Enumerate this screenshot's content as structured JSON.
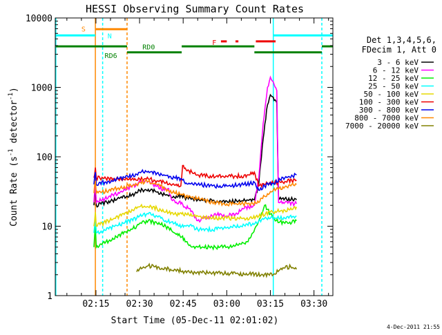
{
  "chart_data": {
    "type": "line",
    "title": "HESSI Observing Summary Count Rates",
    "xlabel": "Start Time (05-Dec-11 02:01:02)",
    "ylabel_base": "Count Rate (s",
    "ylabel_exp1": "-1",
    "ylabel_mid": " detector",
    "ylabel_exp2": "-1",
    "ylabel_end": ")",
    "y_scale": "log",
    "ylim": [
      1,
      10000
    ],
    "xlim_min": [
      121.0,
      216.5
    ],
    "x_ticks": [
      {
        "min": 135,
        "label": "02:15"
      },
      {
        "min": 150,
        "label": "02:30"
      },
      {
        "min": 165,
        "label": "02:45"
      },
      {
        "min": 180,
        "label": "03:00"
      },
      {
        "min": 195,
        "label": "03:15"
      },
      {
        "min": 210,
        "label": "03:30"
      }
    ],
    "y_ticks": [
      {
        "value": 1,
        "label": "1"
      },
      {
        "value": 10,
        "label": "10"
      },
      {
        "value": 100,
        "label": "100"
      },
      {
        "value": 1000,
        "label": "1000"
      },
      {
        "value": 10000,
        "label": "10000"
      }
    ],
    "legend": {
      "position": "right",
      "header1": "Det 1,3,4,5,6,",
      "header2": "FDecim 1, Att 0",
      "entries": [
        {
          "label": "3 - 6 keV",
          "color": "#000000"
        },
        {
          "label": "6 - 12 keV",
          "color": "#ff00ff"
        },
        {
          "label": "12 - 25 keV",
          "color": "#00ee00"
        },
        {
          "label": "25 - 50 keV",
          "color": "#00ffff"
        },
        {
          "label": "50 - 100 keV",
          "color": "#e6d800"
        },
        {
          "label": "100 - 300 keV",
          "color": "#ee0000"
        },
        {
          "label": "300 - 800 keV",
          "color": "#0000ee"
        },
        {
          "label": "800 - 7000 keV",
          "color": "#ff8800"
        },
        {
          "label": "7000 - 20000 keV",
          "color": "#808000"
        }
      ]
    },
    "series": [
      {
        "name": "3 - 6 keV",
        "color": "#000000",
        "points": [
          [
            134.3,
            20
          ],
          [
            134.8,
            35
          ],
          [
            135.1,
            20
          ],
          [
            149.0,
            30
          ],
          [
            150,
            33
          ],
          [
            153,
            34
          ],
          [
            156,
            31
          ],
          [
            159,
            28
          ],
          [
            162,
            26
          ],
          [
            164.5,
            28
          ],
          [
            165.5,
            26
          ],
          [
            170,
            24
          ],
          [
            175,
            23
          ],
          [
            180,
            23
          ],
          [
            185,
            23
          ],
          [
            189.5,
            24
          ],
          [
            191,
            40
          ],
          [
            192.5,
            180
          ],
          [
            194,
            560
          ],
          [
            195,
            780
          ],
          [
            196,
            720
          ],
          [
            197.2,
            600
          ],
          [
            197.8,
            26
          ],
          [
            200,
            25
          ],
          [
            204,
            24
          ]
        ]
      },
      {
        "name": "6 - 12 keV",
        "color": "#ff00ff",
        "points": [
          [
            134.3,
            22
          ],
          [
            134.8,
            40
          ],
          [
            135.1,
            22
          ],
          [
            149.0,
            40
          ],
          [
            150,
            45
          ],
          [
            153,
            44
          ],
          [
            156,
            38
          ],
          [
            158.5,
            33
          ],
          [
            160,
            35
          ],
          [
            161,
            24
          ],
          [
            163,
            21
          ],
          [
            164.5,
            22
          ],
          [
            165.5,
            19
          ],
          [
            167,
            18
          ],
          [
            170,
            12
          ],
          [
            172,
            13
          ],
          [
            175,
            14
          ],
          [
            178,
            15
          ],
          [
            180,
            14
          ],
          [
            183,
            15
          ],
          [
            186,
            18
          ],
          [
            189.5,
            20
          ],
          [
            191,
            50
          ],
          [
            192.5,
            300
          ],
          [
            194,
            1000
          ],
          [
            195,
            1400
          ],
          [
            196,
            1200
          ],
          [
            197.2,
            900
          ],
          [
            197.8,
            22
          ],
          [
            200,
            22
          ],
          [
            204,
            21
          ]
        ]
      },
      {
        "name": "12 - 25 keV",
        "color": "#00ee00",
        "points": [
          [
            134.3,
            5
          ],
          [
            134.8,
            10
          ],
          [
            135.1,
            5
          ],
          [
            149.0,
            10
          ],
          [
            150,
            11
          ],
          [
            153,
            12
          ],
          [
            156,
            11
          ],
          [
            159,
            10
          ],
          [
            162,
            8
          ],
          [
            164.5,
            7
          ],
          [
            166,
            6
          ],
          [
            168,
            5
          ],
          [
            170,
            5
          ],
          [
            175,
            5
          ],
          [
            180,
            5
          ],
          [
            185,
            5.5
          ],
          [
            187,
            6
          ],
          [
            189,
            8
          ],
          [
            191,
            12
          ],
          [
            193,
            20
          ],
          [
            195,
            15
          ],
          [
            197,
            12
          ],
          [
            200,
            11
          ],
          [
            204,
            12
          ]
        ]
      },
      {
        "name": "25 - 50 keV",
        "color": "#00ffff",
        "points": [
          [
            134.3,
            8
          ],
          [
            134.8,
            14
          ],
          [
            135.1,
            8
          ],
          [
            149.0,
            13
          ],
          [
            150,
            14
          ],
          [
            153,
            15
          ],
          [
            156,
            14
          ],
          [
            159,
            12
          ],
          [
            162,
            11
          ],
          [
            164.5,
            10
          ],
          [
            166,
            10
          ],
          [
            168,
            10
          ],
          [
            170,
            9
          ],
          [
            175,
            9
          ],
          [
            180,
            9.5
          ],
          [
            185,
            10
          ],
          [
            189,
            11
          ],
          [
            191,
            12
          ],
          [
            193,
            13
          ],
          [
            195,
            13
          ],
          [
            197,
            13
          ],
          [
            200,
            13
          ],
          [
            204,
            14
          ]
        ]
      },
      {
        "name": "50 - 100 keV",
        "color": "#e6d800",
        "points": [
          [
            134.3,
            10
          ],
          [
            134.8,
            16
          ],
          [
            135.1,
            10
          ],
          [
            149.0,
            18
          ],
          [
            150,
            19
          ],
          [
            153,
            19
          ],
          [
            156,
            18
          ],
          [
            159,
            16
          ],
          [
            162,
            15
          ],
          [
            164.5,
            15
          ],
          [
            166,
            15
          ],
          [
            170,
            14
          ],
          [
            175,
            13
          ],
          [
            180,
            13
          ],
          [
            185,
            13
          ],
          [
            189,
            13
          ],
          [
            191,
            14
          ],
          [
            195,
            16
          ],
          [
            200,
            17
          ],
          [
            204,
            19
          ]
        ]
      },
      {
        "name": "100 - 300 keV",
        "color": "#ee0000",
        "points": [
          [
            134.3,
            50
          ],
          [
            134.8,
            70
          ],
          [
            135.1,
            50
          ],
          [
            149.0,
            46
          ],
          [
            150,
            48
          ],
          [
            153,
            48
          ],
          [
            156,
            45
          ],
          [
            159,
            42
          ],
          [
            162,
            39
          ],
          [
            164.2,
            38
          ],
          [
            164.8,
            75
          ],
          [
            166,
            65
          ],
          [
            170,
            55
          ],
          [
            175,
            52
          ],
          [
            180,
            52
          ],
          [
            185,
            53
          ],
          [
            188,
            55
          ],
          [
            189.5,
            60
          ],
          [
            191,
            38
          ],
          [
            193,
            40
          ],
          [
            196,
            42
          ],
          [
            200,
            44
          ],
          [
            204,
            46
          ]
        ]
      },
      {
        "name": "300 - 800 keV",
        "color": "#0000ee",
        "points": [
          [
            134.3,
            40
          ],
          [
            134.8,
            60
          ],
          [
            135.1,
            40
          ],
          [
            149.0,
            56
          ],
          [
            150,
            60
          ],
          [
            153,
            62
          ],
          [
            156,
            58
          ],
          [
            159,
            54
          ],
          [
            162,
            50
          ],
          [
            164.5,
            48
          ],
          [
            166,
            42
          ],
          [
            170,
            40
          ],
          [
            175,
            38
          ],
          [
            180,
            38
          ],
          [
            185,
            40
          ],
          [
            188,
            41
          ],
          [
            189.5,
            43
          ],
          [
            191,
            33
          ],
          [
            193,
            38
          ],
          [
            196,
            42
          ],
          [
            200,
            50
          ],
          [
            204,
            55
          ]
        ]
      },
      {
        "name": "800 - 7000 keV",
        "color": "#ff8800",
        "points": [
          [
            134.3,
            30
          ],
          [
            134.8,
            45
          ],
          [
            135.1,
            30
          ],
          [
            149.0,
            40
          ],
          [
            150,
            43
          ],
          [
            153,
            44
          ],
          [
            156,
            40
          ],
          [
            159,
            34
          ],
          [
            162,
            30
          ],
          [
            164.5,
            29
          ],
          [
            166,
            27
          ],
          [
            170,
            25
          ],
          [
            175,
            22
          ],
          [
            180,
            21
          ],
          [
            185,
            21
          ],
          [
            189,
            21
          ],
          [
            191,
            22
          ],
          [
            193,
            27
          ],
          [
            196,
            33
          ],
          [
            200,
            37
          ],
          [
            204,
            40
          ]
        ]
      },
      {
        "name": "7000 - 20000 keV",
        "color": "#808000",
        "points": [
          [
            149.0,
            2.2
          ],
          [
            151,
            2.5
          ],
          [
            153,
            2.7
          ],
          [
            155,
            2.6
          ],
          [
            157,
            2.4
          ],
          [
            159,
            2.5
          ],
          [
            161,
            2.3
          ],
          [
            163,
            2.4
          ],
          [
            164.5,
            2.2
          ],
          [
            196,
            2.0
          ],
          [
            198,
            2.3
          ],
          [
            200,
            2.5
          ],
          [
            202,
            2.6
          ],
          [
            204,
            2.4
          ]
        ]
      }
    ],
    "annotations": [
      {
        "text": "S",
        "color": "#ff8800"
      },
      {
        "text": "N",
        "color": "#00ffff"
      },
      {
        "text": "F",
        "color": "#ee0000"
      },
      {
        "text": "RD0",
        "color": "#008000"
      },
      {
        "text": "RD6",
        "color": "#008000"
      }
    ]
  },
  "footer": {
    "timestamp": "4-Dec-2011 21:55"
  }
}
